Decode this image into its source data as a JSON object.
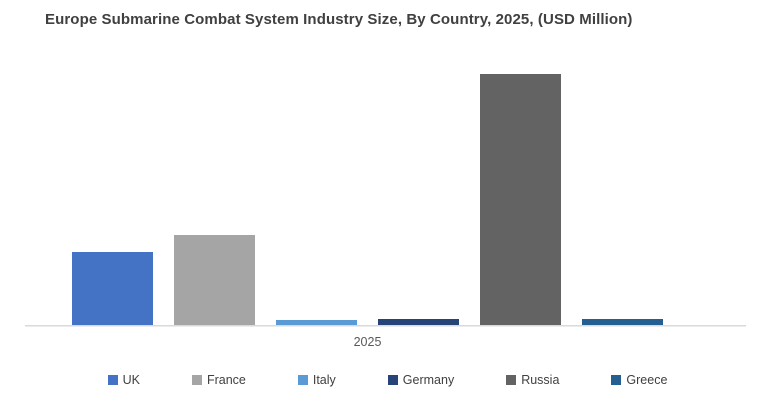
{
  "title": "Europe Submarine Combat System Industry Size, By Country, 2025, (USD Million)",
  "chart_data": {
    "type": "bar",
    "x_categories": [
      "2025"
    ],
    "x_tick_label": "2025",
    "series": [
      {
        "name": "UK",
        "color": "#4472C4",
        "values": [
          29
        ]
      },
      {
        "name": "France",
        "color": "#A5A5A5",
        "values": [
          36
        ]
      },
      {
        "name": "Italy",
        "color": "#5B9BD5",
        "values": [
          2
        ]
      },
      {
        "name": "Germany",
        "color": "#264478",
        "values": [
          2.5
        ]
      },
      {
        "name": "Russia",
        "color": "#636363",
        "values": [
          100
        ]
      },
      {
        "name": "Greece",
        "color": "#255E91",
        "values": [
          2.5
        ]
      }
    ],
    "value_units": "estimated relative units (no y-axis labels shown; tallest bar = 100)",
    "ylim": [
      0,
      108
    ],
    "grid": false,
    "y_axis_visible": false,
    "legend_position": "bottom"
  },
  "colors": {
    "background": "#ffffff",
    "axis_line": "#d9d9d9",
    "title_text": "#404040",
    "tick_text": "#595959",
    "legend_text": "#404040"
  }
}
